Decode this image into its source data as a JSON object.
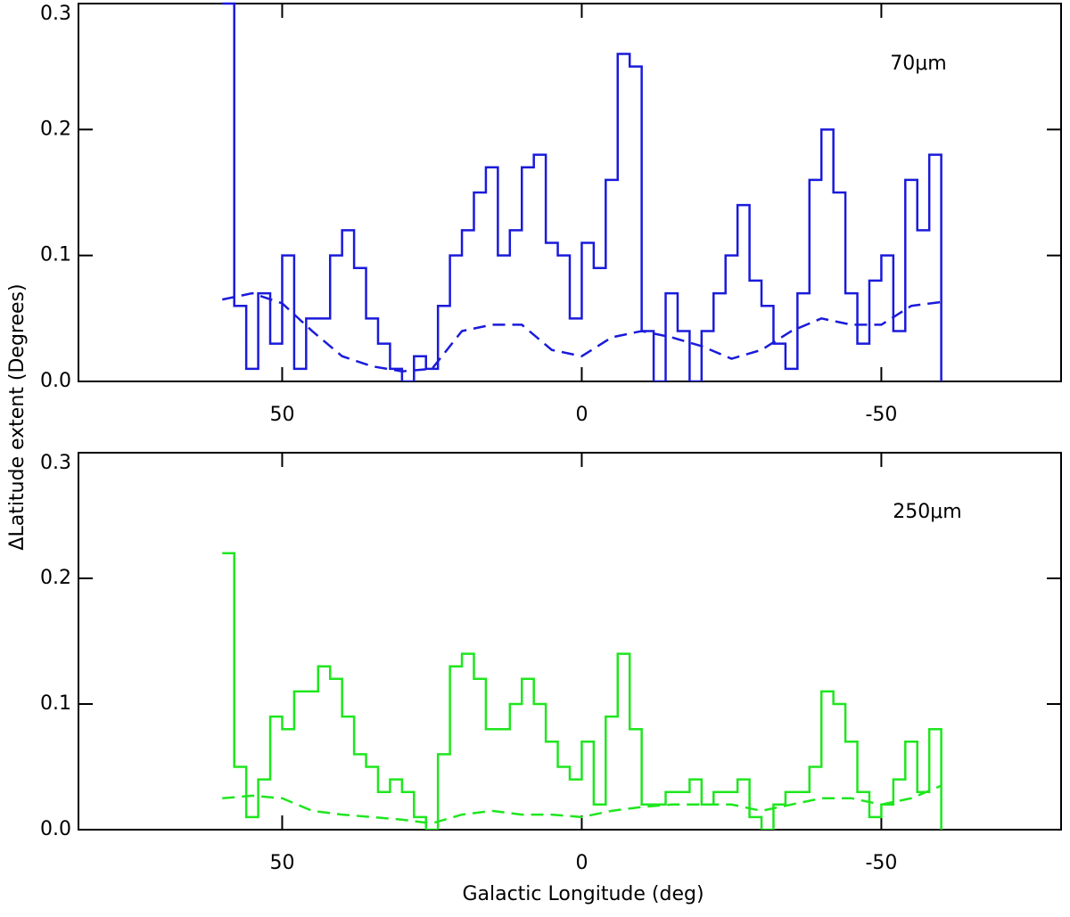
{
  "chart_data": [
    {
      "type": "line",
      "annotation": "70μm",
      "ylabel": "ΔLatitude extent (Degrees)",
      "xlim": [
        84,
        -80
      ],
      "xticks": [
        50,
        0,
        -50
      ],
      "ylim": [
        0,
        0.3
      ],
      "yticks": [
        {
          "value": 0,
          "label": "0.0"
        },
        0.1,
        0.2,
        0.3
      ],
      "series": [
        {
          "color": "#1a1adc",
          "style": "steps",
          "x": [
            59,
            57,
            55,
            53,
            51,
            49,
            47,
            45,
            43,
            41,
            39,
            37,
            35,
            33,
            31,
            29,
            27,
            25,
            23,
            21,
            19,
            17,
            15,
            13,
            11,
            9,
            7,
            5,
            3,
            1,
            -1,
            -3,
            -5,
            -7,
            -9,
            -11,
            -13,
            -15,
            -17,
            -19,
            -21,
            -23,
            -25,
            -27,
            -29,
            -31,
            -33,
            -35,
            -37,
            -39,
            -41,
            -43,
            -45,
            -47,
            -49,
            -51,
            -53,
            -55,
            -57,
            -59
          ],
          "values": [
            0.3,
            0.06,
            0.01,
            0.07,
            0.03,
            0.1,
            0.01,
            0.05,
            0.05,
            0.1,
            0.12,
            0.09,
            0.05,
            0.03,
            0.01,
            0.0,
            0.02,
            0.01,
            0.06,
            0.1,
            0.12,
            0.15,
            0.17,
            0.1,
            0.12,
            0.17,
            0.18,
            0.11,
            0.1,
            0.05,
            0.11,
            0.09,
            0.16,
            0.26,
            0.25,
            0.04,
            0.0,
            0.07,
            0.04,
            0.0,
            0.04,
            0.07,
            0.1,
            0.14,
            0.08,
            0.06,
            0.03,
            0.01,
            0.07,
            0.16,
            0.2,
            0.15,
            0.07,
            0.03,
            0.08,
            0.1,
            0.04,
            0.16,
            0.12,
            0.18
          ]
        },
        {
          "color": "#1a1adc",
          "style": "dashed",
          "x": [
            60,
            55,
            50,
            45,
            40,
            35,
            30,
            25,
            20,
            15,
            10,
            5,
            0,
            -5,
            -10,
            -15,
            -20,
            -25,
            -30,
            -35,
            -40,
            -45,
            -50,
            -55,
            -60
          ],
          "values": [
            0.065,
            0.07,
            0.062,
            0.04,
            0.02,
            0.012,
            0.008,
            0.01,
            0.04,
            0.045,
            0.045,
            0.025,
            0.02,
            0.035,
            0.04,
            0.035,
            0.028,
            0.018,
            0.025,
            0.04,
            0.05,
            0.045,
            0.045,
            0.06,
            0.063
          ]
        }
      ]
    },
    {
      "type": "line",
      "annotation": "250μm",
      "xlabel": "Galactic Longitude (deg)",
      "xlim": [
        84,
        -80
      ],
      "xticks": [
        50,
        0,
        -50
      ],
      "ylim": [
        0,
        0.3
      ],
      "yticks": [
        {
          "value": 0,
          "label": "0.0"
        },
        0.1,
        0.2,
        0.3
      ],
      "series": [
        {
          "color": "#1ee61e",
          "style": "steps",
          "x": [
            59,
            57,
            55,
            53,
            51,
            49,
            47,
            45,
            43,
            41,
            39,
            37,
            35,
            33,
            31,
            29,
            27,
            25,
            23,
            21,
            19,
            17,
            15,
            13,
            11,
            9,
            7,
            5,
            3,
            1,
            -1,
            -3,
            -5,
            -7,
            -9,
            -11,
            -13,
            -15,
            -17,
            -19,
            -21,
            -23,
            -25,
            -27,
            -29,
            -31,
            -33,
            -35,
            -37,
            -39,
            -41,
            -43,
            -45,
            -47,
            -49,
            -51,
            -53,
            -55,
            -57,
            -59
          ],
          "values": [
            0.22,
            0.05,
            0.01,
            0.04,
            0.09,
            0.08,
            0.11,
            0.11,
            0.13,
            0.12,
            0.09,
            0.06,
            0.05,
            0.03,
            0.04,
            0.03,
            0.01,
            0.0,
            0.06,
            0.13,
            0.14,
            0.12,
            0.08,
            0.08,
            0.1,
            0.12,
            0.1,
            0.07,
            0.05,
            0.04,
            0.07,
            0.02,
            0.09,
            0.14,
            0.08,
            0.02,
            0.02,
            0.03,
            0.03,
            0.04,
            0.02,
            0.03,
            0.03,
            0.04,
            0.01,
            0.0,
            0.02,
            0.03,
            0.03,
            0.05,
            0.11,
            0.1,
            0.07,
            0.03,
            0.01,
            0.02,
            0.04,
            0.07,
            0.03,
            0.08
          ]
        },
        {
          "color": "#1ee61e",
          "style": "dashed",
          "x": [
            60,
            55,
            50,
            45,
            40,
            35,
            30,
            25,
            20,
            15,
            10,
            5,
            0,
            -5,
            -10,
            -15,
            -20,
            -25,
            -30,
            -35,
            -40,
            -45,
            -50,
            -55,
            -60
          ],
          "values": [
            0.025,
            0.027,
            0.025,
            0.015,
            0.012,
            0.01,
            0.008,
            0.005,
            0.012,
            0.015,
            0.012,
            0.012,
            0.01,
            0.015,
            0.018,
            0.02,
            0.02,
            0.02,
            0.015,
            0.02,
            0.025,
            0.025,
            0.02,
            0.025,
            0.035
          ]
        }
      ]
    }
  ]
}
